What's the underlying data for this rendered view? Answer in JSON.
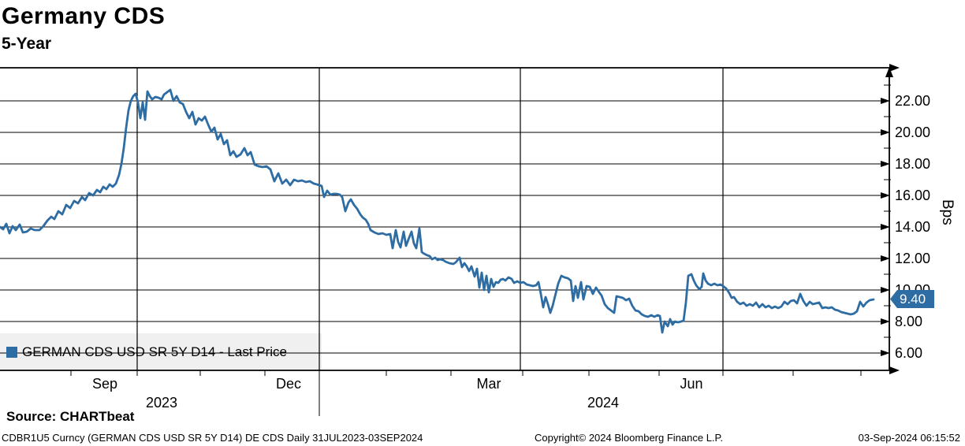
{
  "header": {
    "title": "Germany CDS",
    "subtitle": "5-Year"
  },
  "legend": {
    "label": "GERMAN CDS USD SR 5Y D14 - Last Price",
    "marker_color": "#2e6da4"
  },
  "last_price_tag": "9.40",
  "footer": {
    "source": "Source: CHARTbeat",
    "ticker_info": "CDBR1U5 Curncy (GERMAN CDS USD SR 5Y D14) DE CDS  Daily 31JUL2023-03SEP2024",
    "copyright": "Copyright© 2024 Bloomberg Finance L.P.",
    "datetime": "03-Sep-2024 06:15:52"
  },
  "chart_data": {
    "type": "line",
    "title": "Germany CDS 5-Year",
    "ylabel": "Bps",
    "xlabel": "",
    "grid": true,
    "legend_position": "bottom-left",
    "line_color": "#2e6da4",
    "last_price": 9.4,
    "y_axis": {
      "min": 4.9,
      "max": 24.1,
      "major_ticks": [
        6,
        8,
        10,
        12,
        14,
        16,
        18,
        20,
        22
      ],
      "minor_ticks": [
        7,
        9,
        11,
        13,
        15,
        17,
        19,
        21,
        23
      ],
      "tick_decimals": 2
    },
    "x_axis": {
      "range_text": "31JUL2023-03SEP2024",
      "month_labels": [
        {
          "label": "Sep",
          "x": 133
        },
        {
          "label": "Dec",
          "x": 366
        },
        {
          "label": "Mar",
          "x": 620
        },
        {
          "label": "Jun",
          "x": 877
        }
      ],
      "year_labels": [
        {
          "label": "2023",
          "x": 205
        },
        {
          "label": "2024",
          "x": 765
        }
      ],
      "gridlines": [
        174,
        405,
        660,
        917
      ],
      "minor_ticks": [
        90,
        174,
        254,
        336,
        405,
        490,
        572,
        663,
        747,
        836,
        917,
        1006,
        1092
      ],
      "year_separator_x": 405
    },
    "series": [
      {
        "name": "GERMAN CDS USD SR 5Y D14 - Last Price",
        "color": "#2e6da4",
        "points": [
          [
            0,
            14.0
          ],
          [
            4,
            13.85
          ],
          [
            8,
            14.2
          ],
          [
            12,
            13.6
          ],
          [
            16,
            14.05
          ],
          [
            20,
            13.8
          ],
          [
            25,
            14.15
          ],
          [
            29,
            13.65
          ],
          [
            34,
            13.7
          ],
          [
            39,
            13.9
          ],
          [
            44,
            13.8
          ],
          [
            50,
            13.8
          ],
          [
            55,
            14.05
          ],
          [
            60,
            14.4
          ],
          [
            65,
            14.65
          ],
          [
            69,
            14.5
          ],
          [
            74,
            15.0
          ],
          [
            79,
            14.8
          ],
          [
            84,
            15.4
          ],
          [
            89,
            15.2
          ],
          [
            94,
            15.65
          ],
          [
            99,
            15.5
          ],
          [
            104,
            15.9
          ],
          [
            108,
            15.7
          ],
          [
            113,
            16.15
          ],
          [
            118,
            16.0
          ],
          [
            123,
            16.35
          ],
          [
            127,
            16.2
          ],
          [
            131,
            16.55
          ],
          [
            135,
            16.4
          ],
          [
            139,
            16.7
          ],
          [
            143,
            16.55
          ],
          [
            147,
            16.75
          ],
          [
            151,
            17.3
          ],
          [
            154,
            18.0
          ],
          [
            157,
            19.0
          ],
          [
            160,
            20.3
          ],
          [
            163,
            21.4
          ],
          [
            166,
            22.0
          ],
          [
            169,
            22.3
          ],
          [
            172,
            22.45
          ],
          [
            175,
            21.9
          ],
          [
            178,
            20.9
          ],
          [
            181,
            21.9
          ],
          [
            184,
            20.8
          ],
          [
            187,
            22.6
          ],
          [
            190,
            22.3
          ],
          [
            193,
            22.1
          ],
          [
            197,
            22.25
          ],
          [
            201,
            22.2
          ],
          [
            205,
            22.1
          ],
          [
            208,
            22.4
          ],
          [
            212,
            22.55
          ],
          [
            216,
            22.7
          ],
          [
            220,
            22.0
          ],
          [
            224,
            22.3
          ],
          [
            228,
            21.9
          ],
          [
            232,
            21.8
          ],
          [
            236,
            21.3
          ],
          [
            240,
            20.9
          ],
          [
            244,
            21.3
          ],
          [
            248,
            20.5
          ],
          [
            252,
            20.9
          ],
          [
            256,
            20.75
          ],
          [
            260,
            21.0
          ],
          [
            264,
            20.5
          ],
          [
            268,
            20.05
          ],
          [
            272,
            20.3
          ],
          [
            276,
            19.55
          ],
          [
            280,
            19.9
          ],
          [
            284,
            19.25
          ],
          [
            288,
            19.5
          ],
          [
            292,
            18.55
          ],
          [
            296,
            18.8
          ],
          [
            300,
            18.45
          ],
          [
            305,
            18.6
          ],
          [
            310,
            19.0
          ],
          [
            314,
            18.55
          ],
          [
            318,
            18.75
          ],
          [
            323,
            17.95
          ],
          [
            328,
            17.85
          ],
          [
            333,
            17.8
          ],
          [
            338,
            17.85
          ],
          [
            343,
            17.65
          ],
          [
            348,
            16.9
          ],
          [
            353,
            17.4
          ],
          [
            358,
            16.75
          ],
          [
            363,
            17.0
          ],
          [
            368,
            16.65
          ],
          [
            373,
            17.0
          ],
          [
            378,
            16.9
          ],
          [
            383,
            16.95
          ],
          [
            388,
            16.85
          ],
          [
            393,
            16.9
          ],
          [
            398,
            16.75
          ],
          [
            402,
            16.7
          ],
          [
            405,
            16.65
          ],
          [
            408,
            16.6
          ],
          [
            411,
            15.9
          ],
          [
            415,
            16.3
          ],
          [
            419,
            16.05
          ],
          [
            423,
            16.1
          ],
          [
            427,
            16.1
          ],
          [
            431,
            16.05
          ],
          [
            434,
            15.9
          ],
          [
            438,
            15.0
          ],
          [
            442,
            15.55
          ],
          [
            445,
            15.75
          ],
          [
            449,
            15.4
          ],
          [
            453,
            15.15
          ],
          [
            457,
            14.8
          ],
          [
            460,
            14.6
          ],
          [
            464,
            14.45
          ],
          [
            467,
            14.2
          ],
          [
            470,
            13.8
          ],
          [
            475,
            13.65
          ],
          [
            480,
            13.55
          ],
          [
            485,
            13.6
          ],
          [
            490,
            13.5
          ],
          [
            495,
            13.55
          ],
          [
            498,
            12.65
          ],
          [
            502,
            13.8
          ],
          [
            505,
            13.05
          ],
          [
            508,
            12.7
          ],
          [
            512,
            13.7
          ],
          [
            515,
            12.8
          ],
          [
            518,
            13.2
          ],
          [
            522,
            13.7
          ],
          [
            525,
            12.95
          ],
          [
            528,
            12.65
          ],
          [
            532,
            13.9
          ],
          [
            535,
            12.4
          ],
          [
            538,
            12.3
          ],
          [
            542,
            12.2
          ],
          [
            545,
            12.15
          ],
          [
            548,
            11.95
          ],
          [
            552,
            12.05
          ],
          [
            555,
            11.9
          ],
          [
            558,
            11.95
          ],
          [
            562,
            11.9
          ],
          [
            565,
            11.8
          ],
          [
            570,
            11.7
          ],
          [
            575,
            11.65
          ],
          [
            578,
            11.75
          ],
          [
            583,
            12.05
          ],
          [
            586,
            11.45
          ],
          [
            589,
            11.7
          ],
          [
            592,
            11.5
          ],
          [
            595,
            11.2
          ],
          [
            598,
            11.5
          ],
          [
            602,
            10.85
          ],
          [
            605,
            11.35
          ],
          [
            608,
            10.15
          ],
          [
            611,
            11.1
          ],
          [
            614,
            10.0
          ],
          [
            617,
            10.9
          ],
          [
            620,
            9.85
          ],
          [
            623,
            10.7
          ],
          [
            626,
            10.2
          ],
          [
            629,
            10.5
          ],
          [
            632,
            10.45
          ],
          [
            635,
            10.65
          ],
          [
            638,
            10.7
          ],
          [
            641,
            10.6
          ],
          [
            645,
            10.8
          ],
          [
            649,
            10.7
          ],
          [
            652,
            10.45
          ],
          [
            656,
            10.55
          ],
          [
            660,
            10.45
          ],
          [
            664,
            10.5
          ],
          [
            668,
            10.35
          ],
          [
            672,
            10.3
          ],
          [
            676,
            10.25
          ],
          [
            680,
            10.3
          ],
          [
            683,
            10.5
          ],
          [
            686,
            9.75
          ],
          [
            689,
            8.9
          ],
          [
            692,
            9.55
          ],
          [
            695,
            9.1
          ],
          [
            698,
            8.55
          ],
          [
            701,
            9.0
          ],
          [
            705,
            9.8
          ],
          [
            708,
            10.4
          ],
          [
            712,
            10.9
          ],
          [
            716,
            10.8
          ],
          [
            720,
            10.75
          ],
          [
            724,
            10.6
          ],
          [
            727,
            9.3
          ],
          [
            730,
            10.25
          ],
          [
            733,
            9.5
          ],
          [
            737,
            10.5
          ],
          [
            740,
            9.4
          ],
          [
            744,
            10.25
          ],
          [
            748,
            10.2
          ],
          [
            752,
            9.75
          ],
          [
            756,
            10.15
          ],
          [
            760,
            9.85
          ],
          [
            763,
            9.65
          ],
          [
            767,
            9.1
          ],
          [
            771,
            8.85
          ],
          [
            775,
            8.7
          ],
          [
            779,
            8.55
          ],
          [
            782,
            9.6
          ],
          [
            786,
            9.55
          ],
          [
            790,
            9.5
          ],
          [
            794,
            9.35
          ],
          [
            798,
            9.45
          ],
          [
            802,
            9.0
          ],
          [
            806,
            8.7
          ],
          [
            810,
            8.65
          ],
          [
            814,
            8.45
          ],
          [
            818,
            8.35
          ],
          [
            822,
            8.3
          ],
          [
            826,
            8.4
          ],
          [
            830,
            8.3
          ],
          [
            834,
            8.4
          ],
          [
            837,
            8.35
          ],
          [
            840,
            7.3
          ],
          [
            843,
            8.0
          ],
          [
            847,
            7.7
          ],
          [
            850,
            8.15
          ],
          [
            853,
            7.8
          ],
          [
            856,
            8.0
          ],
          [
            860,
            7.95
          ],
          [
            864,
            8.0
          ],
          [
            867,
            8.05
          ],
          [
            870,
            9.2
          ],
          [
            873,
            10.9
          ],
          [
            877,
            11.0
          ],
          [
            880,
            10.6
          ],
          [
            883,
            10.3
          ],
          [
            887,
            10.05
          ],
          [
            890,
            10.2
          ],
          [
            892,
            11.05
          ],
          [
            895,
            10.6
          ],
          [
            898,
            10.4
          ],
          [
            902,
            10.3
          ],
          [
            906,
            10.4
          ],
          [
            910,
            10.3
          ],
          [
            914,
            10.35
          ],
          [
            917,
            10.25
          ],
          [
            921,
            10.1
          ],
          [
            925,
            9.8
          ],
          [
            928,
            9.5
          ],
          [
            931,
            9.55
          ],
          [
            935,
            9.25
          ],
          [
            939,
            9.1
          ],
          [
            943,
            9.2
          ],
          [
            947,
            9.0
          ],
          [
            951,
            9.1
          ],
          [
            955,
            9.0
          ],
          [
            959,
            9.2
          ],
          [
            963,
            8.9
          ],
          [
            967,
            9.1
          ],
          [
            971,
            8.9
          ],
          [
            975,
            9.0
          ],
          [
            979,
            8.85
          ],
          [
            983,
            8.95
          ],
          [
            987,
            8.85
          ],
          [
            991,
            8.95
          ],
          [
            995,
            9.25
          ],
          [
            999,
            9.1
          ],
          [
            1003,
            9.3
          ],
          [
            1007,
            9.35
          ],
          [
            1011,
            9.15
          ],
          [
            1015,
            9.75
          ],
          [
            1019,
            9.3
          ],
          [
            1023,
            9.0
          ],
          [
            1027,
            9.25
          ],
          [
            1031,
            9.1
          ],
          [
            1035,
            9.15
          ],
          [
            1039,
            9.2
          ],
          [
            1043,
            8.85
          ],
          [
            1047,
            8.9
          ],
          [
            1051,
            8.85
          ],
          [
            1055,
            8.9
          ],
          [
            1059,
            8.75
          ],
          [
            1063,
            8.7
          ],
          [
            1067,
            8.6
          ],
          [
            1071,
            8.55
          ],
          [
            1075,
            8.5
          ],
          [
            1079,
            8.45
          ],
          [
            1083,
            8.5
          ],
          [
            1087,
            8.65
          ],
          [
            1091,
            9.25
          ],
          [
            1095,
            8.95
          ],
          [
            1099,
            9.2
          ],
          [
            1103,
            9.35
          ],
          [
            1108,
            9.4
          ]
        ]
      }
    ]
  }
}
